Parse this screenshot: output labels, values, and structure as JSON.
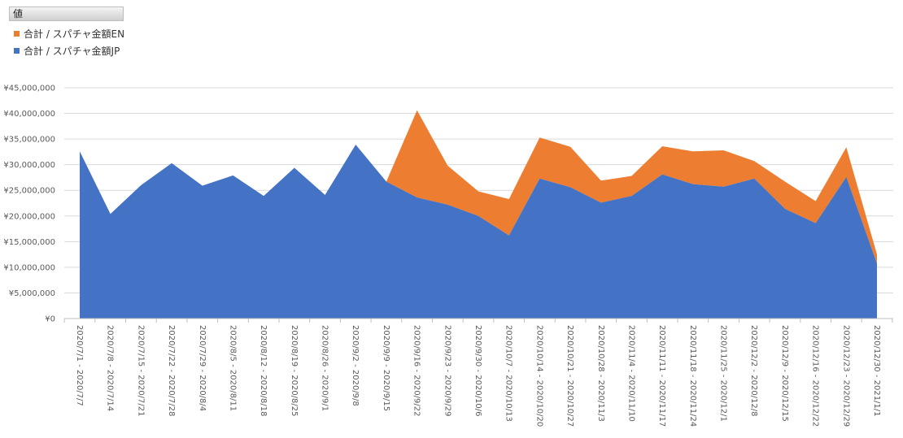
{
  "legend": {
    "header": "値",
    "items": [
      {
        "label": "合計 / スパチャ金額EN",
        "color": "#ED7D31"
      },
      {
        "label": "合計 / スパチャ金額JP",
        "color": "#4472C4"
      }
    ]
  },
  "chart_data": {
    "type": "area",
    "stacked": true,
    "title": "",
    "xlabel": "",
    "ylabel": "",
    "ylim": [
      0,
      45000000
    ],
    "yticks": [
      0,
      5000000,
      10000000,
      15000000,
      20000000,
      25000000,
      30000000,
      35000000,
      40000000,
      45000000
    ],
    "ytick_labels": [
      "¥0",
      "¥5,000,000",
      "¥10,000,000",
      "¥15,000,000",
      "¥20,000,000",
      "¥25,000,000",
      "¥30,000,000",
      "¥35,000,000",
      "¥40,000,000",
      "¥45,000,000"
    ],
    "grid": true,
    "legend_position": "top-left",
    "categories": [
      "2020/7/1 - 2020/7/7",
      "2020/7/8 - 2020/7/14",
      "2020/7/15 - 2020/7/21",
      "2020/7/22 - 2020/7/28",
      "2020/7/29 - 2020/8/4",
      "2020/8/5 - 2020/8/11",
      "2020/8/12 - 2020/8/18",
      "2020/8/19 - 2020/8/25",
      "2020/8/26 - 2020/9/1",
      "2020/9/2 - 2020/9/8",
      "2020/9/9 - 2020/9/15",
      "2020/9/16 - 2020/9/22",
      "2020/9/23 - 2020/9/29",
      "2020/9/30 - 2020/10/6",
      "2020/10/7 - 2020/10/13",
      "2020/10/14 - 2020/10/20",
      "2020/10/21 - 2020/10/27",
      "2020/10/28 - 2020/11/3",
      "2020/11/4 - 2020/11/10",
      "2020/11/11 - 2020/11/17",
      "2020/11/18 - 2020/11/24",
      "2020/11/25 - 2020/12/1",
      "2020/12/2 - 2020/12/8",
      "2020/12/9 - 2020/12/15",
      "2020/12/16 - 2020/12/22",
      "2020/12/23 - 2020/12/29",
      "2020/12/30 - 2021/1/1"
    ],
    "series": [
      {
        "name": "合計 / スパチャ金額JP",
        "color": "#4472C4",
        "values": [
          32600000,
          20400000,
          26000000,
          30300000,
          25900000,
          27900000,
          23900000,
          29400000,
          24100000,
          33900000,
          26700000,
          23600000,
          22200000,
          20000000,
          16200000,
          27300000,
          25600000,
          22600000,
          23900000,
          28100000,
          26200000,
          25700000,
          27300000,
          21400000,
          18600000,
          27600000,
          10700000
        ]
      },
      {
        "name": "合計 / スパチャ金額EN",
        "color": "#ED7D31",
        "values": [
          0,
          0,
          0,
          0,
          0,
          0,
          0,
          0,
          0,
          0,
          0,
          17000000,
          7600000,
          4800000,
          7100000,
          8000000,
          7900000,
          4300000,
          3900000,
          5500000,
          6400000,
          7100000,
          3400000,
          5300000,
          4300000,
          5800000,
          1800000
        ]
      }
    ]
  }
}
